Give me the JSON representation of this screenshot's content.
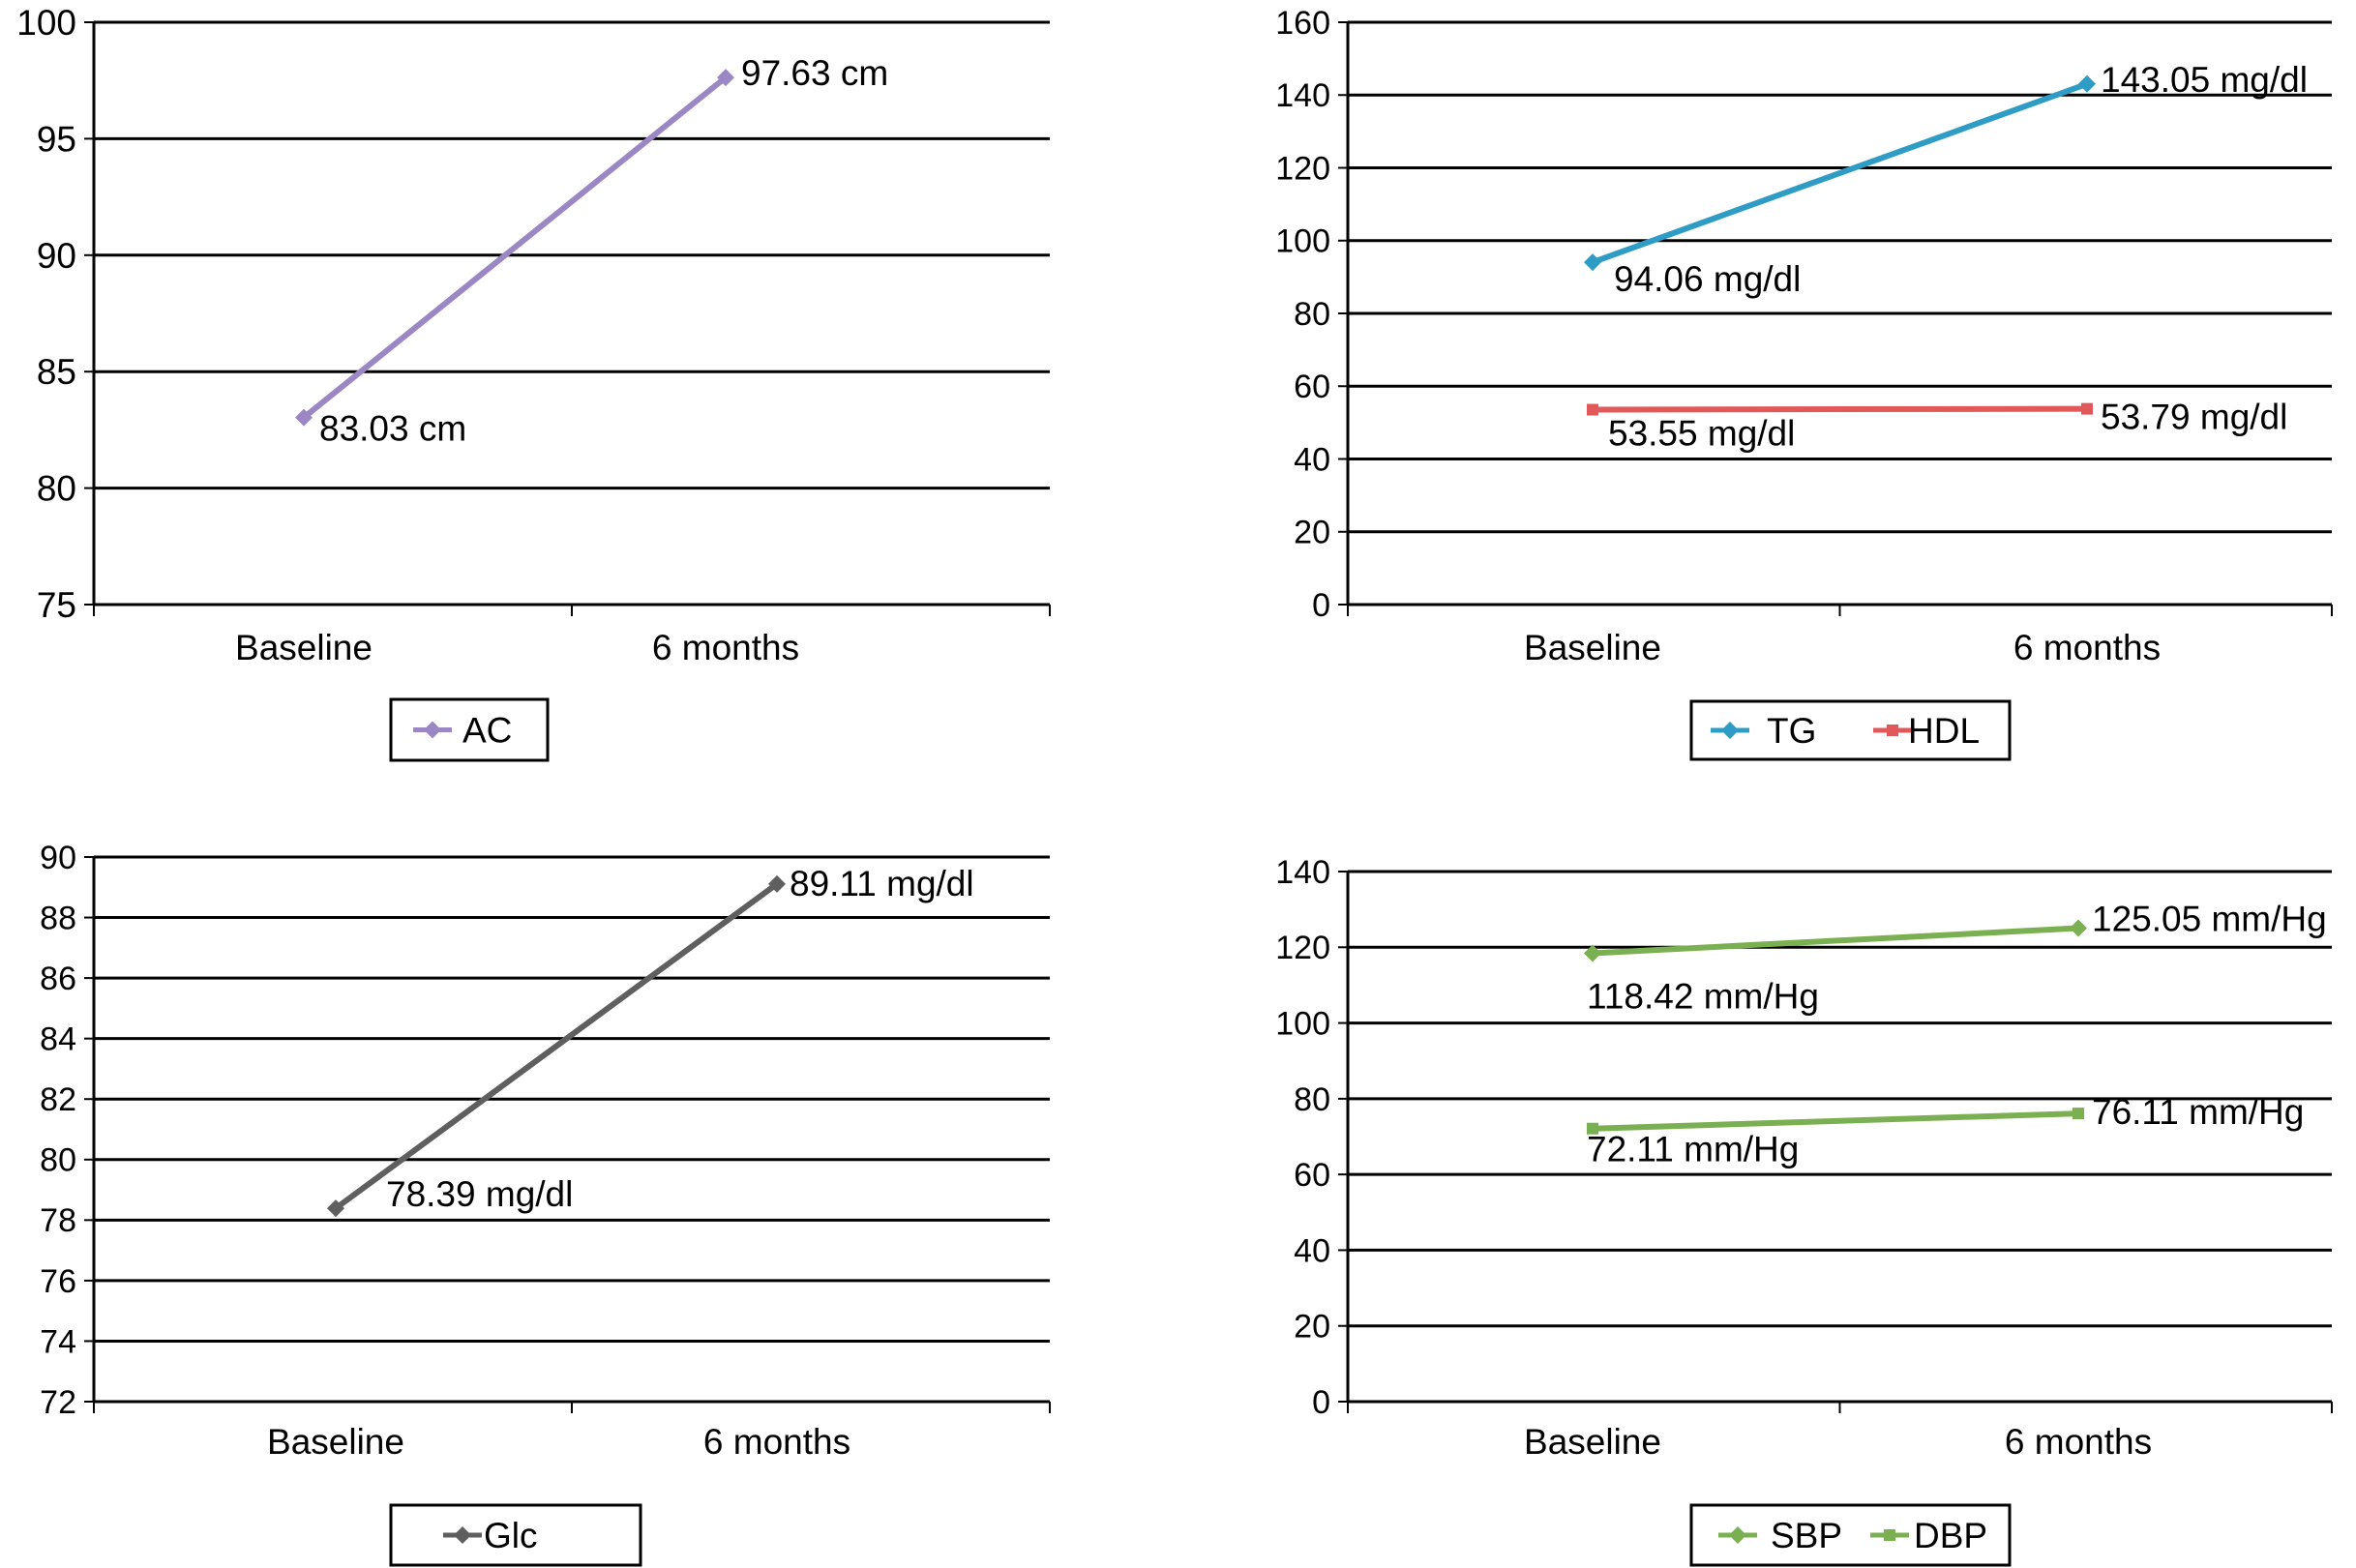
{
  "colors": {
    "AC": "#9b87c4",
    "TG": "#2e9cc4",
    "HDL": "#e0585a",
    "Glc": "#5f5f5f",
    "SBP": "#7ab052",
    "DBP": "#7ab052"
  },
  "chart_data": [
    {
      "type": "line",
      "categories": [
        "Baseline",
        "6 months"
      ],
      "ylim": [
        75,
        100
      ],
      "yticks": [
        "75",
        "80",
        "85",
        "90",
        "95",
        "100"
      ],
      "grid": true,
      "legend_position": "bottom-left",
      "series": [
        {
          "name": "AC",
          "values": [
            83.03,
            97.63
          ],
          "labels": [
            "83.03 cm",
            "97.63 cm"
          ],
          "marker": "diamond"
        }
      ]
    },
    {
      "type": "line",
      "categories": [
        "Baseline",
        "6 months"
      ],
      "ylim": [
        0,
        160
      ],
      "yticks": [
        "0",
        "20",
        "40",
        "60",
        "80",
        "100",
        "120",
        "140",
        "160"
      ],
      "grid": true,
      "legend_position": "bottom-right",
      "series": [
        {
          "name": "TG",
          "values": [
            94.06,
            143.05
          ],
          "labels": [
            "94.06 mg/dl",
            "143.05 mg/dl"
          ],
          "marker": "diamond"
        },
        {
          "name": "HDL",
          "values": [
            53.55,
            53.79
          ],
          "labels": [
            "53.55 mg/dl",
            "53.79 mg/dl"
          ],
          "marker": "square"
        }
      ]
    },
    {
      "type": "line",
      "categories": [
        "Baseline",
        "6 months"
      ],
      "ylim": [
        72,
        90
      ],
      "yticks": [
        "72",
        "74",
        "76",
        "78",
        "80",
        "82",
        "84",
        "86",
        "88",
        "90"
      ],
      "grid": true,
      "legend_position": "bottom-left",
      "series": [
        {
          "name": "Glc",
          "values": [
            78.39,
            89.11
          ],
          "labels": [
            "78.39 mg/dl",
            "89.11 mg/dl"
          ],
          "marker": "diamond"
        }
      ]
    },
    {
      "type": "line",
      "categories": [
        "Baseline",
        "6 months"
      ],
      "ylim": [
        0,
        140
      ],
      "yticks": [
        "0",
        "20",
        "40",
        "60",
        "80",
        "100",
        "120",
        "140"
      ],
      "grid": true,
      "legend_position": "bottom-right",
      "series": [
        {
          "name": "SBP",
          "values": [
            118.42,
            125.05
          ],
          "labels": [
            "118.42 mm/Hg",
            "125.05 mm/Hg"
          ],
          "marker": "diamond"
        },
        {
          "name": "DBP",
          "values": [
            72.11,
            76.11
          ],
          "labels": [
            "72.11 mm/Hg",
            "76.11 mm/Hg"
          ],
          "marker": "square"
        }
      ]
    }
  ]
}
